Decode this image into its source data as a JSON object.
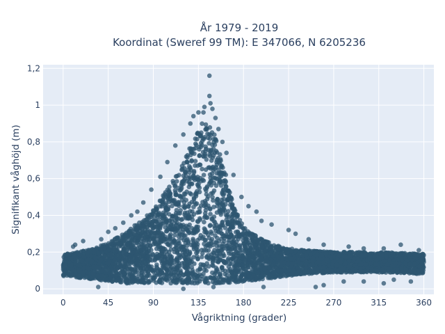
{
  "chart_data": {
    "type": "scatter",
    "title_line1": "År 1979 - 2019",
    "title_line2": "Koordinat (Sweref 99 TM): E 347066, N 6205236",
    "xlabel": "Vågriktning (grader)",
    "ylabel": "Signifikant våghöjd (m)",
    "xlim": [
      -20,
      370
    ],
    "ylim": [
      -0.03,
      1.22
    ],
    "xticks": [
      0,
      45,
      90,
      135,
      180,
      225,
      270,
      315,
      360
    ],
    "xtick_labels": [
      "0",
      "45",
      "90",
      "135",
      "180",
      "225",
      "270",
      "315",
      "360"
    ],
    "yticks": [
      0,
      0.2,
      0.4,
      0.6,
      0.8,
      1,
      1.2
    ],
    "ytick_labels": [
      "0",
      "0,2",
      "0,4",
      "0,6",
      "0,8",
      "1",
      "1,2"
    ],
    "grid": true,
    "legend": "none",
    "colors": {
      "marker": "#2e5670",
      "plot_bg": "#e5ecf6",
      "text": "#2a3f5f"
    },
    "envelope": {
      "x": [
        0,
        15,
        30,
        45,
        60,
        75,
        90,
        105,
        120,
        130,
        135,
        140,
        145,
        150,
        160,
        170,
        180,
        195,
        210,
        225,
        240,
        270,
        315,
        360
      ],
      "upper": [
        0.19,
        0.2,
        0.22,
        0.25,
        0.3,
        0.36,
        0.43,
        0.55,
        0.68,
        0.82,
        0.88,
        0.92,
        0.9,
        0.86,
        0.68,
        0.45,
        0.34,
        0.28,
        0.24,
        0.22,
        0.21,
        0.2,
        0.2,
        0.19
      ],
      "lower": [
        0.07,
        0.06,
        0.05,
        0.04,
        0.03,
        0.03,
        0.03,
        0.03,
        0.03,
        0.03,
        0.03,
        0.03,
        0.03,
        0.03,
        0.03,
        0.03,
        0.04,
        0.05,
        0.06,
        0.07,
        0.08,
        0.09,
        0.09,
        0.08
      ]
    },
    "outliers": [
      [
        146,
        1.16
      ],
      [
        146,
        1.05
      ],
      [
        141,
        0.99
      ],
      [
        135,
        0.96
      ],
      [
        140,
        0.96
      ],
      [
        149,
        0.98
      ],
      [
        147,
        1.01
      ],
      [
        130,
        0.94
      ],
      [
        152,
        0.93
      ],
      [
        127,
        0.9
      ],
      [
        155,
        0.87
      ],
      [
        120,
        0.84
      ],
      [
        159,
        0.8
      ],
      [
        112,
        0.78
      ],
      [
        163,
        0.74
      ],
      [
        104,
        0.69
      ],
      [
        170,
        0.62
      ],
      [
        97,
        0.61
      ],
      [
        88,
        0.54
      ],
      [
        178,
        0.5
      ],
      [
        80,
        0.47
      ],
      [
        185,
        0.45
      ],
      [
        74,
        0.42
      ],
      [
        68,
        0.4
      ],
      [
        193,
        0.42
      ],
      [
        60,
        0.36
      ],
      [
        198,
        0.37
      ],
      [
        52,
        0.33
      ],
      [
        208,
        0.35
      ],
      [
        45,
        0.31
      ],
      [
        225,
        0.32
      ],
      [
        38,
        0.27
      ],
      [
        232,
        0.3
      ],
      [
        20,
        0.26
      ],
      [
        12,
        0.24
      ],
      [
        10,
        0.23
      ],
      [
        245,
        0.27
      ],
      [
        260,
        0.24
      ],
      [
        285,
        0.23
      ],
      [
        300,
        0.22
      ],
      [
        320,
        0.22
      ],
      [
        337,
        0.24
      ],
      [
        355,
        0.21
      ],
      [
        35,
        0.01
      ],
      [
        120,
        0.0
      ],
      [
        150,
        0.01
      ],
      [
        200,
        0.01
      ],
      [
        252,
        0.01
      ],
      [
        300,
        0.04
      ],
      [
        320,
        0.03
      ],
      [
        347,
        0.04
      ],
      [
        330,
        0.05
      ],
      [
        260,
        0.02
      ],
      [
        280,
        0.04
      ]
    ]
  }
}
